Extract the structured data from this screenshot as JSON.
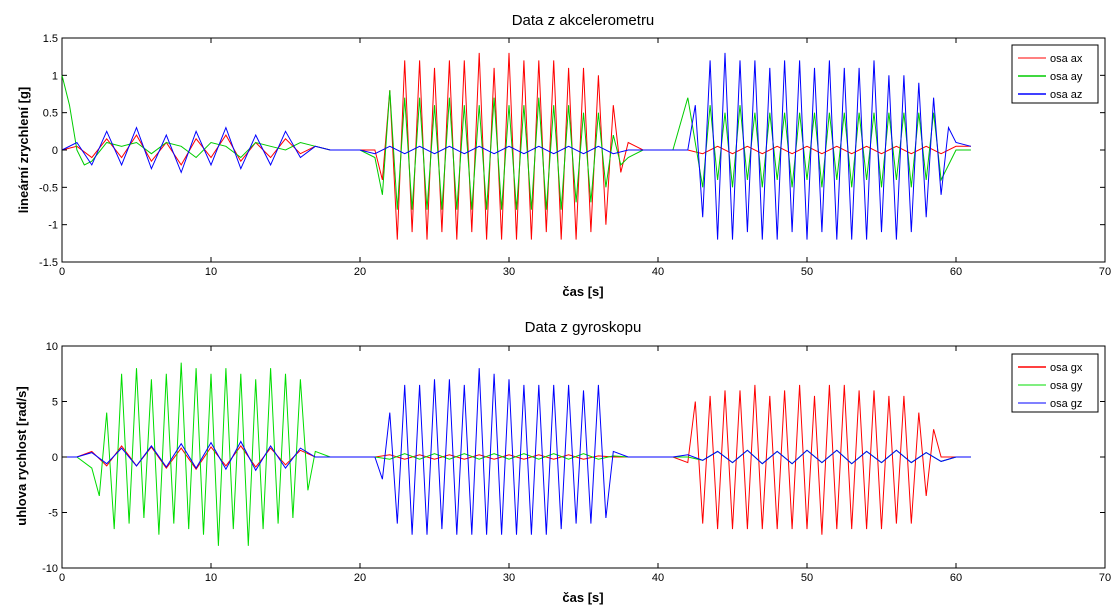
{
  "chart_data": [
    {
      "type": "line",
      "title": "Data z akcelerometru",
      "xlabel": "čas [s]",
      "ylabel": "lineární zrychlení [g]",
      "xlim": [
        0,
        70
      ],
      "ylim": [
        -1.5,
        1.5
      ],
      "xticks": [
        0,
        10,
        20,
        30,
        40,
        50,
        60,
        70
      ],
      "yticks": [
        -1.5,
        -1,
        -0.5,
        0,
        0.5,
        1,
        1.5
      ],
      "ytick_labels": [
        "-1.5",
        "-1",
        "-0.5",
        "0",
        "0.5",
        "1",
        "1.5"
      ],
      "grid": false,
      "legend": "top-right",
      "series": [
        {
          "name": "osa ax",
          "color": "#ff0000",
          "x": [
            0,
            1,
            2,
            3,
            4,
            5,
            6,
            7,
            8,
            9,
            10,
            11,
            12,
            13,
            14,
            15,
            16,
            17,
            18,
            19,
            20,
            21,
            21.5,
            22,
            22.5,
            23,
            23.5,
            24,
            24.5,
            25,
            25.5,
            26,
            26.5,
            27,
            27.5,
            28,
            28.5,
            29,
            29.5,
            30,
            30.5,
            31,
            31.5,
            32,
            32.5,
            33,
            33.5,
            34,
            34.5,
            35,
            35.5,
            36,
            36.5,
            37,
            37.5,
            38,
            39,
            40,
            41,
            42,
            43,
            44,
            45,
            46,
            47,
            48,
            49,
            50,
            51,
            52,
            53,
            54,
            55,
            56,
            57,
            58,
            59,
            60,
            61
          ],
          "y": [
            0,
            0.05,
            -0.1,
            0.15,
            -0.1,
            0.2,
            -0.15,
            0.1,
            -0.2,
            0.15,
            -0.1,
            0.2,
            -0.15,
            0.1,
            -0.1,
            0.15,
            -0.05,
            0.05,
            0,
            0,
            0,
            0,
            -0.4,
            0.8,
            -1.2,
            1.2,
            -1.1,
            1.2,
            -1.2,
            1.1,
            -1.1,
            1.2,
            -1.2,
            1.2,
            -1.1,
            1.3,
            -1.2,
            1.1,
            -1.2,
            1.3,
            -1.2,
            1.2,
            -1.2,
            1.2,
            -1.1,
            1.2,
            -1.2,
            1.1,
            -1.2,
            1.1,
            -1.1,
            1.0,
            -1.0,
            0.6,
            -0.3,
            0.1,
            0,
            0,
            0,
            0,
            -0.05,
            0.05,
            -0.05,
            0.05,
            -0.05,
            0.05,
            -0.05,
            0.05,
            -0.05,
            0.05,
            -0.05,
            0.05,
            -0.05,
            0.05,
            -0.05,
            0.05,
            -0.05,
            0.05,
            0.05
          ]
        },
        {
          "name": "osa ay",
          "color": "#00cc00",
          "x": [
            0,
            0.5,
            1,
            1.5,
            2,
            3,
            4,
            5,
            6,
            7,
            8,
            9,
            10,
            11,
            12,
            13,
            14,
            15,
            16,
            17,
            18,
            19,
            20,
            21,
            21.5,
            22,
            22.5,
            23,
            23.5,
            24,
            24.5,
            25,
            25.5,
            26,
            26.5,
            27,
            27.5,
            28,
            28.5,
            29,
            29.5,
            30,
            30.5,
            31,
            31.5,
            32,
            32.5,
            33,
            33.5,
            34,
            34.5,
            35,
            35.5,
            36,
            36.5,
            37,
            37.5,
            38,
            39,
            40,
            41,
            42,
            43,
            43.5,
            44,
            44.5,
            45,
            45.5,
            46,
            46.5,
            47,
            47.5,
            48,
            48.5,
            49,
            49.5,
            50,
            50.5,
            51,
            51.5,
            52,
            52.5,
            53,
            53.5,
            54,
            54.5,
            55,
            55.5,
            56,
            56.5,
            57,
            57.5,
            58,
            58.5,
            59,
            60,
            61
          ],
          "y": [
            1.0,
            0.6,
            0.0,
            -0.2,
            -0.15,
            0.1,
            0.05,
            0.1,
            -0.05,
            0.1,
            0.05,
            -0.1,
            0.1,
            0.05,
            -0.1,
            0.1,
            0.05,
            0.0,
            0.1,
            0.05,
            0,
            0,
            0,
            -0.1,
            -0.6,
            0.8,
            -0.8,
            0.7,
            -0.8,
            0.7,
            -0.8,
            0.6,
            -0.8,
            0.7,
            -0.8,
            0.6,
            -0.8,
            0.6,
            -0.8,
            0.7,
            -0.8,
            0.6,
            -0.8,
            0.6,
            -0.8,
            0.7,
            -0.8,
            0.6,
            -0.8,
            0.6,
            -0.7,
            0.5,
            -0.7,
            0.5,
            -0.5,
            0.2,
            -0.2,
            -0.1,
            0,
            0,
            0,
            0.7,
            -0.5,
            0.6,
            -0.4,
            0.5,
            -0.5,
            0.6,
            -0.4,
            0.5,
            -0.5,
            0.5,
            -0.4,
            0.5,
            -0.5,
            0.5,
            -0.4,
            0.5,
            -0.5,
            0.5,
            -0.4,
            0.5,
            -0.5,
            0.5,
            -0.4,
            0.5,
            -0.5,
            0.5,
            -0.4,
            0.5,
            -0.5,
            0.5,
            -0.4,
            0.5,
            -0.4,
            0.0,
            0.0
          ]
        },
        {
          "name": "osa az",
          "color": "#0000ff",
          "x": [
            0,
            1,
            2,
            3,
            4,
            5,
            6,
            7,
            8,
            9,
            10,
            11,
            12,
            13,
            14,
            15,
            16,
            17,
            18,
            19,
            20,
            21,
            22,
            23,
            24,
            25,
            26,
            27,
            28,
            29,
            30,
            31,
            32,
            33,
            34,
            35,
            36,
            37,
            38,
            39,
            40,
            41,
            42,
            42.5,
            43,
            43.5,
            44,
            44.5,
            45,
            45.5,
            46,
            46.5,
            47,
            47.5,
            48,
            48.5,
            49,
            49.5,
            50,
            50.5,
            51,
            51.5,
            52,
            52.5,
            53,
            53.5,
            54,
            54.5,
            55,
            55.5,
            56,
            56.5,
            57,
            57.5,
            58,
            58.5,
            59,
            59.5,
            60,
            61
          ],
          "y": [
            0,
            0.1,
            -0.2,
            0.25,
            -0.2,
            0.3,
            -0.25,
            0.2,
            -0.3,
            0.25,
            -0.2,
            0.3,
            -0.25,
            0.2,
            -0.2,
            0.25,
            -0.1,
            0.05,
            0,
            0,
            0,
            -0.05,
            0.05,
            -0.05,
            0.05,
            -0.05,
            0.05,
            -0.05,
            0.05,
            -0.05,
            0.05,
            -0.05,
            0.05,
            -0.05,
            0.05,
            -0.05,
            0.05,
            -0.05,
            0,
            0,
            0,
            0,
            0,
            0.6,
            -0.9,
            1.2,
            -1.2,
            1.3,
            -1.2,
            1.2,
            -1.1,
            1.2,
            -1.2,
            1.1,
            -1.2,
            1.2,
            -1.1,
            1.2,
            -1.2,
            1.1,
            -1.1,
            1.2,
            -1.2,
            1.1,
            -1.2,
            1.1,
            -1.2,
            1.2,
            -1.1,
            1.0,
            -1.2,
            1.0,
            -1.1,
            0.9,
            -0.9,
            0.7,
            -0.6,
            0.3,
            0.1,
            0.05
          ]
        }
      ]
    },
    {
      "type": "line",
      "title": "Data z gyroskopu",
      "xlabel": "čas [s]",
      "ylabel": "uhlova rychlost [rad/s]",
      "xlim": [
        0,
        70
      ],
      "ylim": [
        -10,
        10
      ],
      "xticks": [
        0,
        10,
        20,
        30,
        40,
        50,
        60,
        70
      ],
      "yticks": [
        -10,
        -5,
        0,
        5,
        10
      ],
      "ytick_labels": [
        "-10",
        "-5",
        "0",
        "5",
        "10"
      ],
      "grid": false,
      "legend": "top-right",
      "series": [
        {
          "name": "osa gx",
          "color": "#ff0000",
          "x": [
            0,
            1,
            2,
            3,
            4,
            5,
            6,
            7,
            8,
            9,
            10,
            11,
            12,
            13,
            14,
            15,
            16,
            17,
            18,
            19,
            20,
            21,
            22,
            23,
            24,
            25,
            26,
            27,
            28,
            29,
            30,
            31,
            32,
            33,
            34,
            35,
            36,
            37,
            38,
            39,
            40,
            41,
            42,
            42.5,
            43,
            43.5,
            44,
            44.5,
            45,
            45.5,
            46,
            46.5,
            47,
            47.5,
            48,
            48.5,
            49,
            49.5,
            50,
            50.5,
            51,
            51.5,
            52,
            52.5,
            53,
            53.5,
            54,
            54.5,
            55,
            55.5,
            56,
            56.5,
            57,
            57.5,
            58,
            58.5,
            59,
            60,
            61
          ],
          "y": [
            0,
            0,
            0.5,
            -0.8,
            1.0,
            -0.8,
            0.9,
            -1.0,
            0.8,
            -1.1,
            0.9,
            -0.8,
            1.0,
            -0.9,
            0.8,
            -0.7,
            0.6,
            0,
            0,
            0,
            0,
            0,
            0.2,
            -0.2,
            0.2,
            -0.2,
            0.2,
            -0.2,
            0.2,
            -0.2,
            0.2,
            -0.2,
            0.2,
            -0.2,
            0.2,
            -0.2,
            0.1,
            0,
            0,
            0,
            0,
            0,
            -0.5,
            5.0,
            -6.0,
            5.5,
            -6.5,
            6.0,
            -6.5,
            6.0,
            -6.5,
            6.5,
            -6.5,
            5.5,
            -6.5,
            6.0,
            -6.5,
            6.5,
            -6.5,
            5.5,
            -7.0,
            6.5,
            -6.5,
            6.5,
            -6.5,
            6.0,
            -6.5,
            6.0,
            -6.5,
            5.5,
            -6.0,
            5.5,
            -6.0,
            4.0,
            -3.5,
            2.5,
            0,
            0,
            0
          ]
        },
        {
          "name": "osa gy",
          "color": "#00dd00",
          "x": [
            0,
            1,
            2,
            2.5,
            3,
            3.5,
            4,
            4.5,
            5,
            5.5,
            6,
            6.5,
            7,
            7.5,
            8,
            8.5,
            9,
            9.5,
            10,
            10.5,
            11,
            11.5,
            12,
            12.5,
            13,
            13.5,
            14,
            14.5,
            15,
            15.5,
            16,
            16.5,
            17,
            18,
            19,
            20,
            21,
            22,
            23,
            24,
            25,
            26,
            27,
            28,
            29,
            30,
            31,
            32,
            33,
            34,
            35,
            36,
            37,
            38,
            39,
            40,
            41,
            42,
            43,
            44,
            45,
            46,
            47,
            48,
            49,
            50,
            51,
            52,
            53,
            54,
            55,
            56,
            57,
            58,
            59,
            60,
            61
          ],
          "y": [
            0,
            0,
            -1.0,
            -3.5,
            4.0,
            -6.5,
            7.5,
            -6.0,
            8.0,
            -5.5,
            7.0,
            -7.0,
            7.5,
            -6.0,
            8.5,
            -6.5,
            8.0,
            -7.0,
            7.5,
            -8.0,
            8.0,
            -6.5,
            7.5,
            -8.0,
            7.0,
            -6.5,
            8.0,
            -6.0,
            7.5,
            -5.5,
            7.0,
            -3.0,
            0.5,
            0,
            0,
            0,
            0,
            -0.2,
            0.3,
            -0.2,
            0.3,
            -0.2,
            0.3,
            -0.2,
            0.3,
            -0.2,
            0.3,
            -0.2,
            0.3,
            -0.2,
            0.3,
            -0.2,
            0.1,
            0,
            0,
            0,
            0,
            0,
            -0.3,
            0.5,
            -0.5,
            0.6,
            -0.6,
            0.5,
            -0.6,
            0.6,
            -0.5,
            0.6,
            -0.6,
            0.5,
            -0.5,
            0.6,
            -0.5,
            0.4,
            -0.4,
            0,
            0
          ]
        },
        {
          "name": "osa gz",
          "color": "#0000ff",
          "x": [
            0,
            1,
            2,
            3,
            4,
            5,
            6,
            7,
            8,
            9,
            10,
            11,
            12,
            13,
            14,
            15,
            16,
            17,
            18,
            19,
            20,
            21,
            21.5,
            22,
            22.5,
            23,
            23.5,
            24,
            24.5,
            25,
            25.5,
            26,
            26.5,
            27,
            27.5,
            28,
            28.5,
            29,
            29.5,
            30,
            30.5,
            31,
            31.5,
            32,
            32.5,
            33,
            33.5,
            34,
            34.5,
            35,
            35.5,
            36,
            36.5,
            37,
            38,
            39,
            40,
            41,
            42,
            43,
            44,
            45,
            46,
            47,
            48,
            49,
            50,
            51,
            52,
            53,
            54,
            55,
            56,
            57,
            58,
            59,
            60,
            61
          ],
          "y": [
            0,
            0,
            0.4,
            -0.6,
            0.8,
            -0.8,
            1.0,
            -0.9,
            1.2,
            -1.0,
            1.3,
            -1.1,
            1.4,
            -1.2,
            1.0,
            -1.0,
            0.8,
            0,
            0,
            0,
            0,
            0,
            -2.0,
            4.0,
            -6.0,
            6.5,
            -7.0,
            6.5,
            -7.0,
            7.0,
            -6.5,
            7.0,
            -7.0,
            6.5,
            -7.0,
            8.0,
            -7.0,
            7.5,
            -7.0,
            7.0,
            -7.0,
            6.5,
            -7.0,
            6.5,
            -7.0,
            6.5,
            -6.5,
            6.5,
            -6.0,
            6.0,
            -6.0,
            6.5,
            -5.5,
            0.5,
            0,
            0,
            0,
            0,
            0.2,
            -0.3,
            0.5,
            -0.5,
            0.6,
            -0.6,
            0.5,
            -0.6,
            0.6,
            -0.5,
            0.6,
            -0.6,
            0.5,
            -0.5,
            0.6,
            -0.5,
            0.4,
            -0.4,
            0,
            0
          ]
        }
      ]
    }
  ]
}
